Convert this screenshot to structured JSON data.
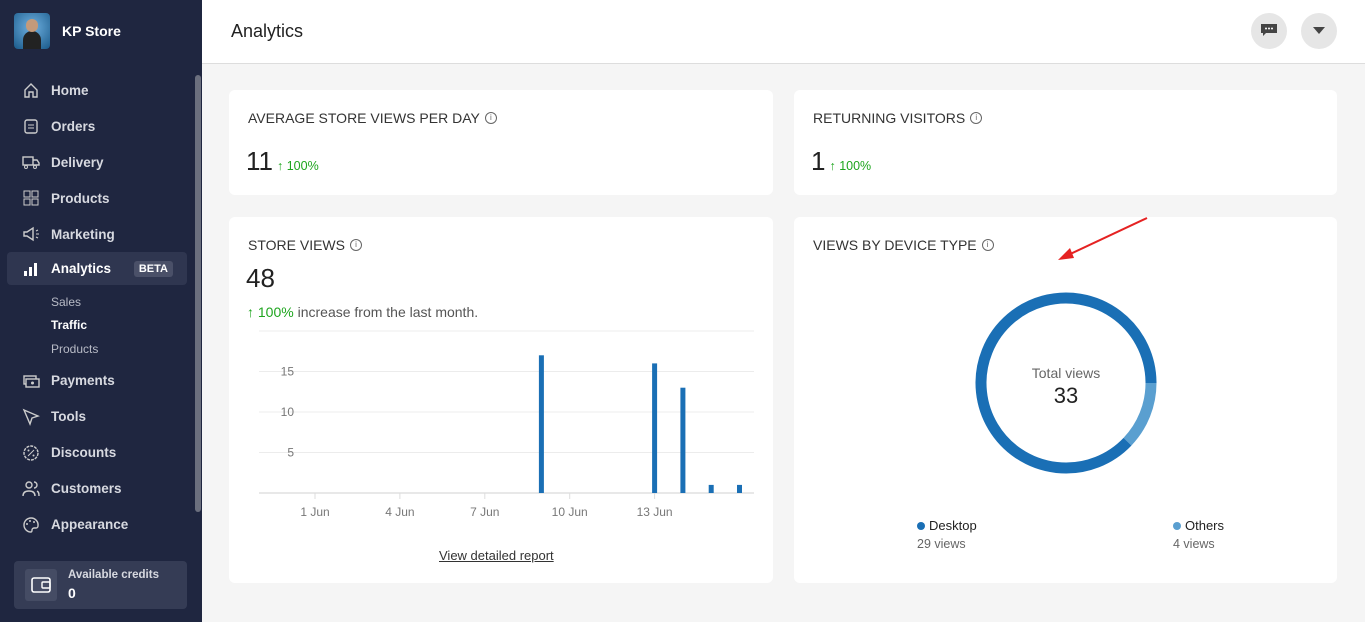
{
  "store": {
    "name": "KP Store"
  },
  "sidebar": {
    "items": [
      {
        "label": "Home",
        "icon": "home-icon"
      },
      {
        "label": "Orders",
        "icon": "clipboard-icon"
      },
      {
        "label": "Delivery",
        "icon": "truck-icon"
      },
      {
        "label": "Products",
        "icon": "grid-icon"
      },
      {
        "label": "Marketing",
        "icon": "megaphone-icon"
      },
      {
        "label": "Analytics",
        "icon": "bar-chart-icon",
        "badge": "BETA",
        "active": true
      },
      {
        "label": "Payments",
        "icon": "payments-icon"
      },
      {
        "label": "Tools",
        "icon": "cursor-icon"
      },
      {
        "label": "Discounts",
        "icon": "discount-icon"
      },
      {
        "label": "Customers",
        "icon": "users-icon"
      },
      {
        "label": "Appearance",
        "icon": "palette-icon"
      }
    ],
    "subitems": [
      {
        "label": "Sales"
      },
      {
        "label": "Traffic",
        "active": true
      },
      {
        "label": "Products"
      }
    ],
    "credits": {
      "label": "Available credits",
      "value": "0"
    }
  },
  "header": {
    "title": "Analytics"
  },
  "avg_views": {
    "title": "AVERAGE STORE VIEWS PER DAY",
    "value": "11",
    "change": "100%"
  },
  "returning": {
    "title": "RETURNING VISITORS",
    "value": "1",
    "change": "100%"
  },
  "store_views": {
    "title": "STORE VIEWS",
    "value": "48",
    "change": "100%",
    "change_text": "increase from the last month.",
    "link": "View detailed report"
  },
  "device": {
    "title": "VIEWS BY DEVICE TYPE",
    "center_label": "Total views",
    "total": "33",
    "segments": [
      {
        "name": "Desktop",
        "value": 29,
        "sub": "29 views",
        "color": "#1a6fb5"
      },
      {
        "name": "Others",
        "value": 4,
        "sub": "4 views",
        "color": "#5a9fd0"
      }
    ]
  },
  "chart_data": {
    "type": "bar",
    "x": [
      "1 Jun",
      "2 Jun",
      "3 Jun",
      "4 Jun",
      "5 Jun",
      "6 Jun",
      "7 Jun",
      "8 Jun",
      "9 Jun",
      "10 Jun",
      "11 Jun",
      "12 Jun",
      "13 Jun",
      "14 Jun",
      "15 Jun",
      "16 Jun"
    ],
    "values": [
      0,
      0,
      0,
      0,
      0,
      0,
      0,
      0,
      17,
      0,
      0,
      0,
      16,
      13,
      1,
      1
    ],
    "xticks": [
      "1 Jun",
      "4 Jun",
      "7 Jun",
      "10 Jun",
      "13 Jun"
    ],
    "yticks": [
      "5",
      "10",
      "15"
    ],
    "ylim": [
      0,
      20
    ],
    "grid": true,
    "color": "#1a6fb5"
  }
}
